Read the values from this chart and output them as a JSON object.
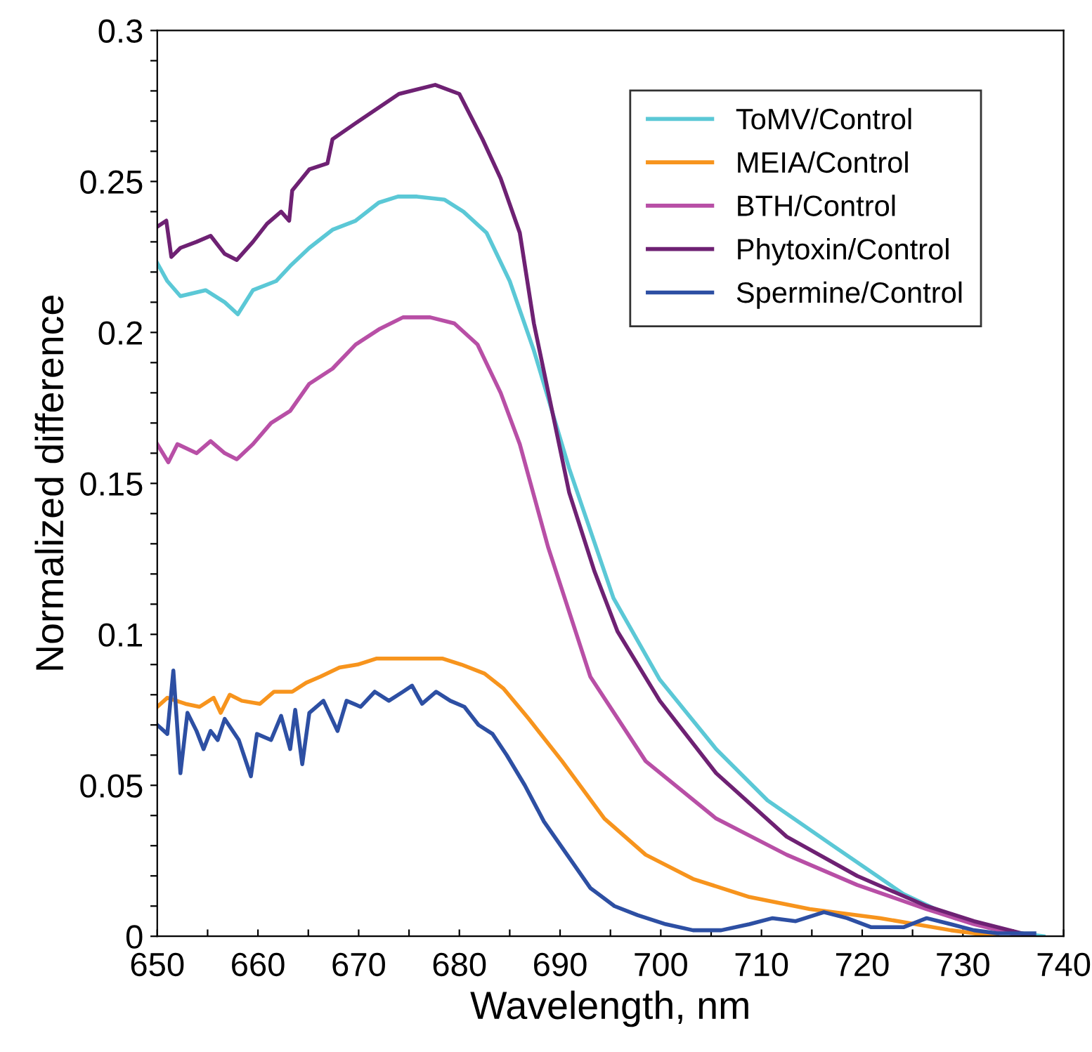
{
  "chart_data": {
    "type": "line",
    "xlabel": "Wavelength, nm",
    "ylabel": "Normalized difference",
    "legend": "top right",
    "grid": false,
    "marker": "none",
    "line_style": "solid",
    "xlim": [
      650,
      740
    ],
    "xticks": [
      650,
      {
        "value": 655,
        "label": null
      },
      660,
      {
        "value": 665,
        "label": null
      },
      670,
      {
        "value": 675,
        "label": null
      },
      680,
      {
        "value": 685,
        "label": null
      },
      690,
      {
        "value": 695,
        "label": null
      },
      700,
      {
        "value": 705,
        "label": null
      },
      710,
      {
        "value": 715,
        "label": null
      },
      720,
      {
        "value": 725,
        "label": null
      },
      730,
      {
        "value": 735,
        "label": null
      },
      740
    ],
    "ylim": [
      0,
      0.3
    ],
    "yticks": [
      0,
      {
        "value": 0.01,
        "label": null
      },
      {
        "value": 0.02,
        "label": null
      },
      {
        "value": 0.03,
        "label": null
      },
      {
        "value": 0.04,
        "label": null
      },
      0.05,
      {
        "value": 0.06,
        "label": null
      },
      {
        "value": 0.07,
        "label": null
      },
      {
        "value": 0.08,
        "label": null
      },
      {
        "value": 0.09,
        "label": null
      },
      0.1,
      {
        "value": 0.11,
        "label": null
      },
      {
        "value": 0.12,
        "label": null
      },
      {
        "value": 0.13,
        "label": null
      },
      {
        "value": 0.14,
        "label": null
      },
      0.15,
      {
        "value": 0.16,
        "label": null
      },
      {
        "value": 0.17,
        "label": null
      },
      {
        "value": 0.18,
        "label": null
      },
      {
        "value": 0.19,
        "label": null
      },
      0.2,
      {
        "value": 0.21,
        "label": null
      },
      {
        "value": 0.22,
        "label": null
      },
      {
        "value": 0.23,
        "label": null
      },
      {
        "value": 0.24,
        "label": null
      },
      0.25,
      {
        "value": 0.26,
        "label": null
      },
      {
        "value": 0.27,
        "label": null
      },
      {
        "value": 0.28,
        "label": null
      },
      {
        "value": 0.29,
        "label": null
      },
      0.3
    ],
    "series": [
      {
        "name": "ToMV/Control",
        "color": "#5bc8d6",
        "x": [
          650,
          651,
          652.3,
          654.8,
          656.7,
          658,
          659.5,
          661.8,
          663.2,
          665.1,
          667.4,
          669.7,
          672,
          673.9,
          675.8,
          678.5,
          680.4,
          682.7,
          685,
          687.4,
          690.9,
          695.3,
          699.9,
          705.5,
          710.6,
          717.1,
          724.1,
          729.2,
          735.7,
          738
        ],
        "values": [
          0.223,
          0.217,
          0.212,
          0.214,
          0.21,
          0.206,
          0.214,
          0.217,
          0.222,
          0.228,
          0.234,
          0.237,
          0.243,
          0.245,
          0.245,
          0.244,
          0.24,
          0.233,
          0.217,
          0.194,
          0.155,
          0.112,
          0.085,
          0.062,
          0.045,
          0.03,
          0.014,
          0.006,
          0.001,
          0
        ]
      },
      {
        "name": "MEIA/Control",
        "color": "#f7941d",
        "x": [
          650,
          651,
          652.8,
          654.2,
          655.6,
          656.3,
          657.2,
          658.4,
          660.2,
          661.6,
          663.4,
          664.8,
          666.2,
          668.1,
          669.9,
          671.8,
          674.1,
          676.4,
          678.3,
          680.2,
          682.5,
          684.4,
          686.9,
          690.2,
          694.4,
          698.5,
          703.2,
          708.8,
          714.8,
          721.8,
          728.8,
          733.4
        ],
        "values": [
          0.076,
          0.079,
          0.077,
          0.076,
          0.079,
          0.074,
          0.08,
          0.078,
          0.077,
          0.081,
          0.081,
          0.084,
          0.086,
          0.089,
          0.09,
          0.092,
          0.092,
          0.092,
          0.092,
          0.09,
          0.087,
          0.082,
          0.072,
          0.058,
          0.039,
          0.027,
          0.019,
          0.013,
          0.009,
          0.006,
          0.002,
          0
        ]
      },
      {
        "name": "BTH/Control",
        "color": "#b84fa6",
        "x": [
          650,
          651.1,
          652,
          653.9,
          655.3,
          656.7,
          657.9,
          659.5,
          661.3,
          663.2,
          665.1,
          667.4,
          669.7,
          672,
          674.4,
          677.1,
          679.5,
          681.8,
          684.1,
          686,
          688.8,
          693,
          698.5,
          705.5,
          712.5,
          719.5,
          726.4,
          731.1,
          736
        ],
        "values": [
          0.163,
          0.157,
          0.163,
          0.16,
          0.164,
          0.16,
          0.158,
          0.163,
          0.17,
          0.174,
          0.183,
          0.188,
          0.196,
          0.201,
          0.205,
          0.205,
          0.203,
          0.196,
          0.18,
          0.163,
          0.129,
          0.086,
          0.058,
          0.039,
          0.027,
          0.017,
          0.009,
          0.004,
          0
        ]
      },
      {
        "name": "Phytoxin/Control",
        "color": "#6e2173",
        "x": [
          650,
          650.9,
          651.4,
          652.3,
          653.9,
          655.3,
          656.7,
          657.9,
          659.5,
          660.9,
          662.3,
          663.1,
          663.4,
          665.1,
          666.9,
          667.4,
          670,
          674,
          677.6,
          680,
          682.3,
          684.1,
          686,
          687.4,
          690.9,
          693.4,
          695.7,
          699.9,
          705.5,
          712.5,
          719.5,
          726.4,
          731.1,
          737
        ],
        "values": [
          0.235,
          0.237,
          0.225,
          0.228,
          0.23,
          0.232,
          0.226,
          0.224,
          0.23,
          0.236,
          0.24,
          0.237,
          0.247,
          0.254,
          0.256,
          0.264,
          0.27,
          0.279,
          0.282,
          0.279,
          0.264,
          0.251,
          0.233,
          0.203,
          0.147,
          0.121,
          0.101,
          0.078,
          0.054,
          0.033,
          0.02,
          0.01,
          0.005,
          0
        ]
      },
      {
        "name": "Spermine/Control",
        "color": "#2d4fa3",
        "x": [
          650,
          651,
          651.6,
          652.3,
          653,
          653.9,
          654.6,
          655.3,
          656,
          656.7,
          658.1,
          659.3,
          659.9,
          661.3,
          662.3,
          663.2,
          663.7,
          664.4,
          665.1,
          666.5,
          667.9,
          668.8,
          670.2,
          671.6,
          673,
          674.4,
          675.3,
          676.3,
          677.7,
          679.1,
          680.5,
          681.9,
          683.3,
          684.7,
          686.5,
          688.4,
          690.7,
          693,
          695.4,
          697.7,
          700.5,
          703.2,
          706,
          708.8,
          711.1,
          713.4,
          716.2,
          718.5,
          720.9,
          724.1,
          726.4,
          728.8,
          731.1,
          733.4,
          737.1
        ],
        "values": [
          0.07,
          0.067,
          0.088,
          0.054,
          0.074,
          0.068,
          0.062,
          0.068,
          0.065,
          0.072,
          0.065,
          0.053,
          0.067,
          0.065,
          0.073,
          0.062,
          0.075,
          0.057,
          0.074,
          0.078,
          0.068,
          0.078,
          0.076,
          0.081,
          0.078,
          0.081,
          0.083,
          0.077,
          0.081,
          0.078,
          0.076,
          0.07,
          0.067,
          0.06,
          0.05,
          0.038,
          0.027,
          0.016,
          0.01,
          0.007,
          0.004,
          0.002,
          0.002,
          0.004,
          0.006,
          0.005,
          0.008,
          0.006,
          0.003,
          0.003,
          0.006,
          0.004,
          0.002,
          0.001,
          0.001
        ]
      }
    ]
  }
}
